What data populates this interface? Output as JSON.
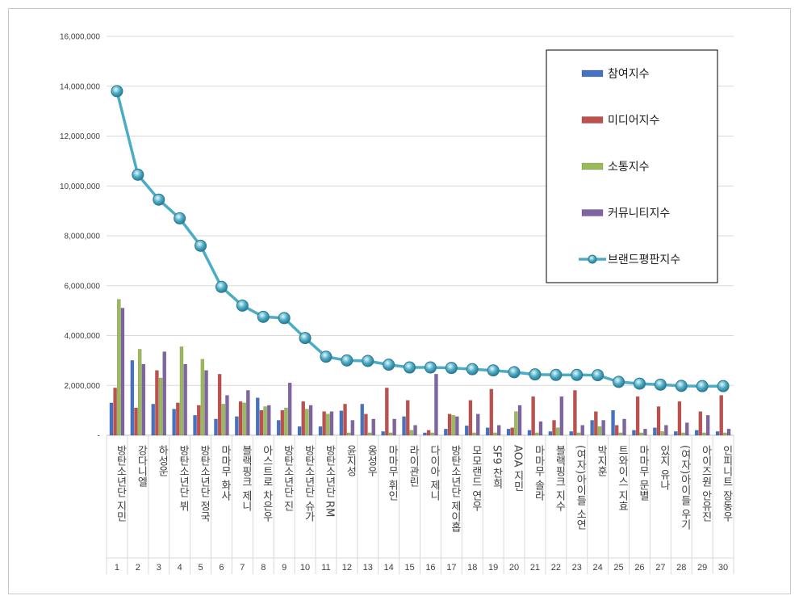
{
  "chart_data": {
    "type": "bar",
    "ylim": [
      0,
      16000000
    ],
    "yticks": [
      "-",
      "2,000,000",
      "4,000,000",
      "6,000,000",
      "8,000,000",
      "10,000,000",
      "12,000,000",
      "14,000,000",
      "16,000,000"
    ],
    "grid": true,
    "legend_position": "top-right",
    "categories": [
      "1",
      "2",
      "3",
      "4",
      "5",
      "6",
      "7",
      "8",
      "9",
      "10",
      "11",
      "12",
      "13",
      "14",
      "15",
      "16",
      "17",
      "18",
      "19",
      "20",
      "21",
      "22",
      "23",
      "24",
      "25",
      "26",
      "27",
      "28",
      "29",
      "30"
    ],
    "names": [
      "방탄소년단 지민",
      "강다니엘",
      "하성운",
      "방탄소년단 뷔",
      "방탄소년단 정국",
      "마마무 화사",
      "블랙핑크 제니",
      "아스트로 차은우",
      "방탄소년단 진",
      "방탄소년단 슈가",
      "방탄소년단 RM",
      "윤지성",
      "옹성우",
      "마마무 휘인",
      "라이관린",
      "다이아 제니",
      "방탄소년단 제이홉",
      "모모랜드 연우",
      "SF9 찬희",
      "AOA 지민",
      "마마무 솔라",
      "블랙핑크 지수",
      "(여자)아이들 소연",
      "박지훈",
      "트와이스 지효",
      "마마무 문별",
      "있지 유나",
      "(여자)아이들 우기",
      "아이즈원 안유진",
      "인피니트 장동우"
    ],
    "series": [
      {
        "name": "참여지수",
        "color": "#4472c4",
        "kind": "bar",
        "values": [
          1300000,
          3000000,
          1250000,
          1050000,
          800000,
          650000,
          750000,
          1500000,
          600000,
          350000,
          350000,
          980000,
          1250000,
          150000,
          750000,
          100000,
          250000,
          380000,
          300000,
          250000,
          200000,
          150000,
          150000,
          600000,
          1000000,
          200000,
          300000,
          150000,
          200000,
          150000
        ]
      },
      {
        "name": "미디어지수",
        "color": "#c0504d",
        "kind": "bar",
        "values": [
          1900000,
          1100000,
          2600000,
          1300000,
          1200000,
          2450000,
          1350000,
          1000000,
          1000000,
          1350000,
          950000,
          1250000,
          850000,
          1900000,
          1400000,
          200000,
          850000,
          1400000,
          1850000,
          300000,
          1550000,
          600000,
          1800000,
          950000,
          400000,
          1550000,
          1150000,
          1350000,
          950000,
          1600000
        ]
      },
      {
        "name": "소통지수",
        "color": "#9bbb59",
        "kind": "bar",
        "values": [
          5450000,
          3450000,
          2300000,
          3550000,
          3050000,
          1250000,
          1300000,
          1150000,
          1100000,
          1050000,
          850000,
          100000,
          100000,
          100000,
          200000,
          100000,
          800000,
          100000,
          100000,
          950000,
          100000,
          300000,
          100000,
          350000,
          100000,
          100000,
          150000,
          100000,
          100000,
          100000
        ]
      },
      {
        "name": "커뮤니티지수",
        "color": "#8064a2",
        "kind": "bar",
        "values": [
          5100000,
          2850000,
          3350000,
          2850000,
          2600000,
          1600000,
          1800000,
          1200000,
          2100000,
          1200000,
          950000,
          600000,
          650000,
          650000,
          400000,
          2450000,
          750000,
          850000,
          400000,
          1200000,
          550000,
          1550000,
          400000,
          600000,
          650000,
          250000,
          400000,
          500000,
          800000,
          250000
        ]
      },
      {
        "name": "브랜드평판지수",
        "color": "#4bacc6",
        "kind": "line",
        "values": [
          13800000,
          10450000,
          9450000,
          8700000,
          7600000,
          5950000,
          5200000,
          4750000,
          4700000,
          3900000,
          3150000,
          3000000,
          2980000,
          2830000,
          2720000,
          2720000,
          2700000,
          2650000,
          2600000,
          2530000,
          2440000,
          2420000,
          2420000,
          2410000,
          2140000,
          2070000,
          2030000,
          1980000,
          1970000,
          1970000
        ]
      }
    ]
  }
}
